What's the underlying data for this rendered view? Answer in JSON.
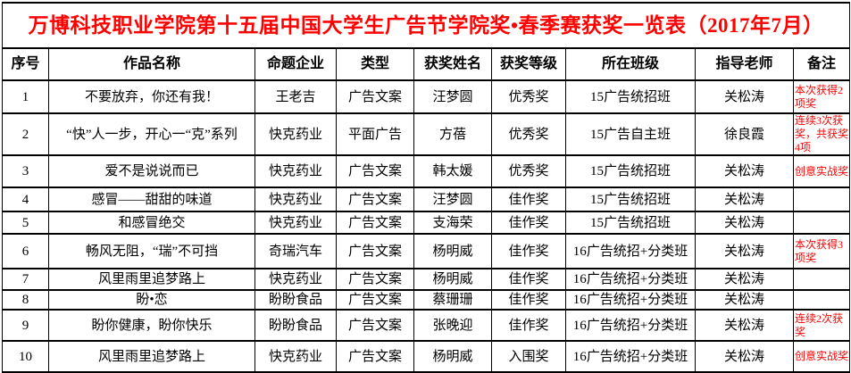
{
  "title": "万博科技职业学院第十五届中国大学生广告节学院奖•春季赛获奖一览表（2017年7月）",
  "colors": {
    "title_text": "#FF0000",
    "remark_text": "#FF0000",
    "body_text": "#000000",
    "border": "#000000",
    "background": "#FFFFFF"
  },
  "table": {
    "headers": [
      "序号",
      "作品名称",
      "命题企业",
      "类型",
      "获奖姓名",
      "获奖等级",
      "所在班级",
      "指导老师",
      "备注"
    ],
    "rows": [
      {
        "no": "1",
        "work": "不要放弃，你还有我！",
        "company": "王老吉",
        "type": "广告文案",
        "name": "汪梦圆",
        "level": "优秀奖",
        "class_name": "15广告统招班",
        "teacher": "关松涛",
        "remark": "本次获得2项奖"
      },
      {
        "no": "2",
        "work": "“快”人一步，开心一“克”系列",
        "company": "快克药业",
        "type": "平面广告",
        "name": "方蓓",
        "level": "优秀奖",
        "class_name": "15广告自主班",
        "teacher": "徐良霞",
        "remark": "连续3次获奖，共获奖4项"
      },
      {
        "no": "3",
        "work": "爱不是说说而已",
        "company": "快克药业",
        "type": "广告文案",
        "name": "韩太媛",
        "level": "优秀奖",
        "class_name": "15广告统招班",
        "teacher": "关松涛",
        "remark": "创意实战奖"
      },
      {
        "no": "4",
        "work": "感冒——甜甜的味道",
        "company": "快克药业",
        "type": "广告文案",
        "name": "汪梦圆",
        "level": "佳作奖",
        "class_name": "15广告统招班",
        "teacher": "关松涛",
        "remark": ""
      },
      {
        "no": "5",
        "work": "和感冒绝交",
        "company": "快克药业",
        "type": "广告文案",
        "name": "支海荣",
        "level": "佳作奖",
        "class_name": "15广告统招班",
        "teacher": "关松涛",
        "remark": ""
      },
      {
        "no": "6",
        "work": "畅风无阻，“瑞”不可挡",
        "company": "奇瑞汽车",
        "type": "广告文案",
        "name": "杨明威",
        "level": "佳作奖",
        "class_name": "16广告统招+分类班",
        "teacher": "关松涛",
        "remark": "本次获得3项奖"
      },
      {
        "no": "7",
        "work": "风里雨里追梦路上",
        "company": "快克药业",
        "type": "广告文案",
        "name": "杨明威",
        "level": "佳作奖",
        "class_name": "16广告统招+分类班",
        "teacher": "关松涛",
        "remark": ""
      },
      {
        "no": "8",
        "work": "盼•恋",
        "company": "盼盼食品",
        "type": "广告文案",
        "name": "蔡珊珊",
        "level": "佳作奖",
        "class_name": "16广告统招+分类班",
        "teacher": "关松涛",
        "remark": ""
      },
      {
        "no": "9",
        "work": "盼你健康，盼你快乐",
        "company": "盼盼食品",
        "type": "广告文案",
        "name": "张晚迎",
        "level": "佳作奖",
        "class_name": "16广告统招+分类班",
        "teacher": "关松涛",
        "remark": "连续2次获奖"
      },
      {
        "no": "10",
        "work": "风里雨里追梦路上",
        "company": "快克药业",
        "type": "广告文案",
        "name": "杨明威",
        "level": "入围奖",
        "class_name": "16广告统招+分类班",
        "teacher": "关松涛",
        "remark": "创意实战奖"
      }
    ]
  }
}
